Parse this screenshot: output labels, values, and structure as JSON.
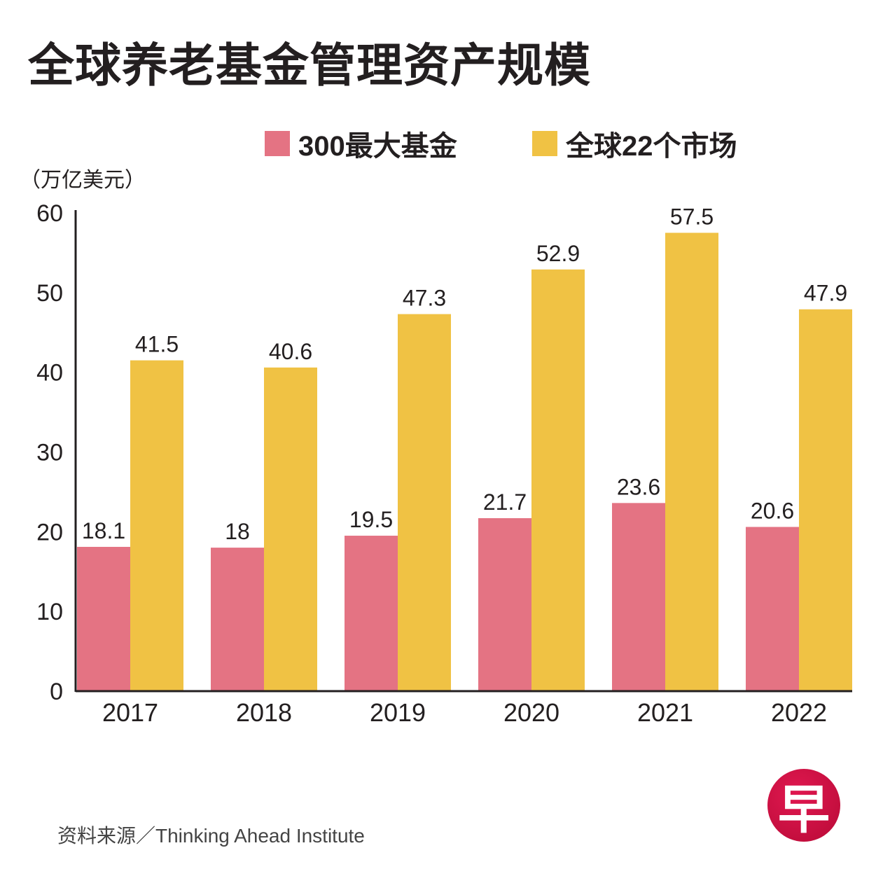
{
  "chart_data": {
    "type": "bar",
    "title": "全球养老基金管理资产规模",
    "ylabel": "（万亿美元）",
    "xlabel": "",
    "categories": [
      "2017",
      "2018",
      "2019",
      "2020",
      "2021",
      "2022"
    ],
    "series": [
      {
        "name": "300最大基金",
        "color": "#e47383",
        "values": [
          18.1,
          18,
          19.5,
          21.7,
          23.6,
          20.6
        ]
      },
      {
        "name": "全球22个市场",
        "color": "#f0c244",
        "values": [
          41.5,
          40.6,
          47.3,
          52.9,
          57.5,
          47.9
        ]
      }
    ],
    "ylim": [
      0,
      60
    ],
    "yticks": [
      0,
      10,
      20,
      30,
      40,
      50,
      60
    ],
    "grid": false,
    "legend_position": "top-right"
  },
  "source": "资料来源／Thinking Ahead Institute",
  "logo_text": "早"
}
